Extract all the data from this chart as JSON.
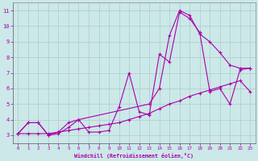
{
  "xlabel": "Windchill (Refroidissement éolien,°C)",
  "background_color": "#cce8e8",
  "grid_color": "#aacccc",
  "line_color": "#aa00aa",
  "xlim": [
    -0.5,
    23.5
  ],
  "ylim": [
    2.5,
    11.5
  ],
  "yticks": [
    3,
    4,
    5,
    6,
    7,
    8,
    9,
    10,
    11
  ],
  "xticks": [
    0,
    1,
    2,
    3,
    4,
    5,
    6,
    7,
    8,
    9,
    10,
    11,
    12,
    13,
    14,
    15,
    16,
    17,
    18,
    19,
    20,
    21,
    22,
    23
  ],
  "line1_x": [
    0,
    1,
    2,
    3,
    4,
    5,
    6,
    7,
    8,
    9,
    10,
    11,
    12,
    13,
    14,
    15,
    16,
    17,
    18,
    19,
    20,
    21,
    22,
    23
  ],
  "line1_y": [
    3.1,
    3.1,
    3.1,
    3.1,
    3.2,
    3.3,
    3.4,
    3.5,
    3.6,
    3.7,
    3.8,
    4.0,
    4.2,
    4.4,
    4.7,
    5.0,
    5.2,
    5.5,
    5.7,
    5.9,
    6.1,
    6.3,
    6.5,
    5.8
  ],
  "line2_x": [
    0,
    1,
    2,
    3,
    4,
    5,
    6,
    7,
    8,
    9,
    10,
    11,
    12,
    13,
    14,
    15,
    16,
    17,
    18,
    19,
    20,
    21,
    22,
    23
  ],
  "line2_y": [
    3.1,
    3.8,
    3.8,
    3.0,
    3.1,
    3.5,
    4.0,
    3.2,
    3.2,
    3.3,
    4.8,
    7.0,
    4.5,
    4.3,
    8.2,
    7.7,
    10.9,
    10.5,
    9.6,
    5.8,
    6.0,
    5.0,
    7.2,
    7.3
  ],
  "line3_x": [
    0,
    1,
    2,
    3,
    4,
    5,
    6,
    13,
    14,
    15,
    16,
    17,
    18,
    19,
    20,
    21,
    22,
    23
  ],
  "line3_y": [
    3.1,
    3.8,
    3.8,
    3.0,
    3.2,
    3.8,
    4.0,
    5.0,
    6.0,
    9.4,
    11.0,
    10.7,
    9.5,
    9.0,
    8.3,
    7.5,
    7.3,
    7.3
  ]
}
